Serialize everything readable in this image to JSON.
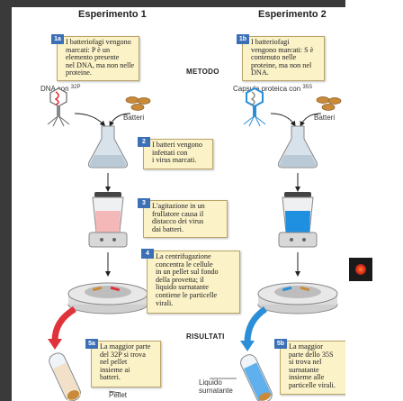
{
  "experiment1": {
    "title": "Esperimento 1",
    "box_number": "1a",
    "box_text": "I batteriofagi vengono\nmarcati: P è un\nelemento presente\nnel DNA, ma non nelle\nproteine.",
    "label_left": "DNA con ",
    "label_isotope": "32P",
    "label_bacteria": "Batteri"
  },
  "experiment2": {
    "title": "Esperimento 2",
    "box_number": "1b",
    "box_text": "I batteriofagi\nvengono marcati: S è\ncontenuto nelle\nproteine, ma non nel\nDNA.",
    "label_left": "Capsula proteica con ",
    "label_isotope": "35S",
    "label_bacteria": "Batteri"
  },
  "method_label": "METODO",
  "step2": {
    "number": "2",
    "text": "I batteri vengono\ninfettati con\ni virus marcati."
  },
  "step3": {
    "number": "3",
    "text": "L'agitazione in un\nfrullatore causa il\ndistacco dei virus\ndai batteri."
  },
  "step4": {
    "number": "4",
    "text": "La centrifugazione\nconcentra le cellule\nin un pellet sul fondo\ndella provetta; il\nliquido surnatante\ncontiene le particelle\nvirali."
  },
  "results_label": "RISULTATI",
  "result5a": {
    "number": "5a",
    "text": "La maggior parte\ndel 32P si trova\nnel pellet\ninsieme ai\nbatteri."
  },
  "result5b": {
    "number": "5b",
    "text": "La maggior\nparte dello 35S\nsi trova nel\nsurnatante\ninsieme alle\nparticelle virali."
  },
  "bottom_labels": {
    "liquid": "Liquido\nsurnatante",
    "pellet": "Pellet"
  },
  "colors": {
    "box_bg": "#fbf2c8",
    "tag_blue": "#3b6fb6",
    "red": "#e0323a",
    "blue": "#2a8fd8",
    "flask_pink": "#f4b8b8",
    "flask_blue": "#1f8fe0"
  },
  "icons": [
    "phage-icon",
    "bacteria-icon",
    "flask-icon",
    "blender-icon",
    "centrifuge-icon",
    "test-tube-icon",
    "arrow-down-icon"
  ]
}
